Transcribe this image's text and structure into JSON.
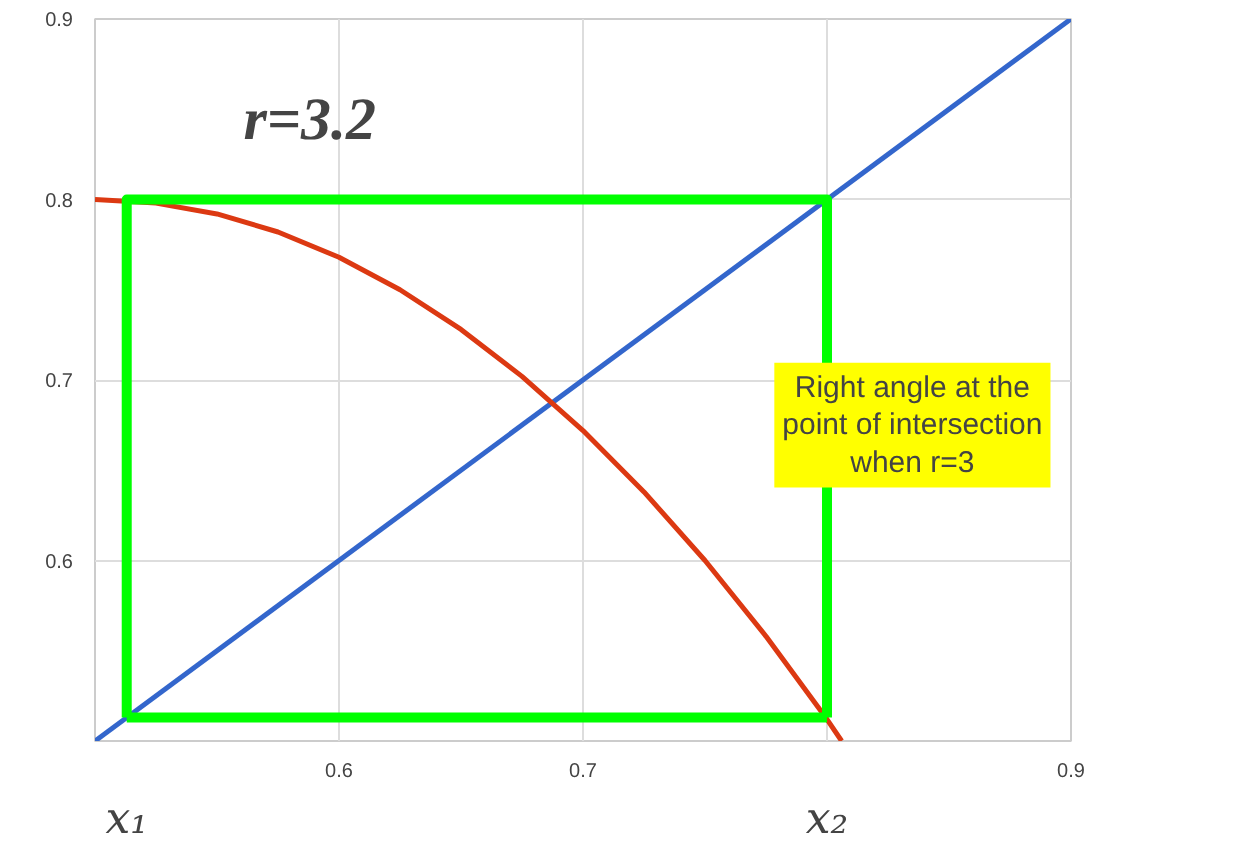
{
  "chart_data": {
    "type": "line",
    "title": "r=3.2",
    "annotations": [
      "Right angle at the point of intersection when r=3",
      "x₁",
      "x₂"
    ],
    "xlim": [
      0.5,
      0.9
    ],
    "ylim": [
      0.5,
      0.9
    ],
    "xticks": [
      {
        "value": 0.5,
        "label": null
      },
      0.6,
      0.7,
      {
        "value": 0.8,
        "label": null
      },
      0.9
    ],
    "yticks": [
      {
        "value": 0.5,
        "label": null
      },
      0.6,
      0.7,
      0.8,
      0.9
    ],
    "grid": true,
    "marker": "none",
    "line_style": "solid",
    "series": [
      {
        "color": "#3366cc",
        "x": [
          0.5,
          0.9
        ],
        "values": [
          0.5,
          0.9
        ]
      },
      {
        "color": "#dc3912",
        "x": [
          0.5,
          0.525,
          0.55,
          0.575,
          0.6,
          0.625,
          0.65,
          0.675,
          0.7,
          0.725,
          0.75,
          0.775,
          0.8,
          0.806
        ],
        "values": [
          0.8,
          0.798,
          0.792,
          0.782,
          0.768,
          0.75,
          0.728,
          0.702,
          0.672,
          0.638,
          0.6,
          0.558,
          0.512,
          0.5
        ]
      },
      {
        "color": "#00ff00",
        "x": [
          0.513,
          0.513,
          0.8,
          0.8
        ],
        "values": [
          0.513,
          0.8,
          0.8,
          0.513
        ]
      },
      {
        "color": "#00ff00",
        "x": [
          0.513,
          0.8
        ],
        "values": [
          0.513,
          0.513
        ]
      }
    ]
  }
}
